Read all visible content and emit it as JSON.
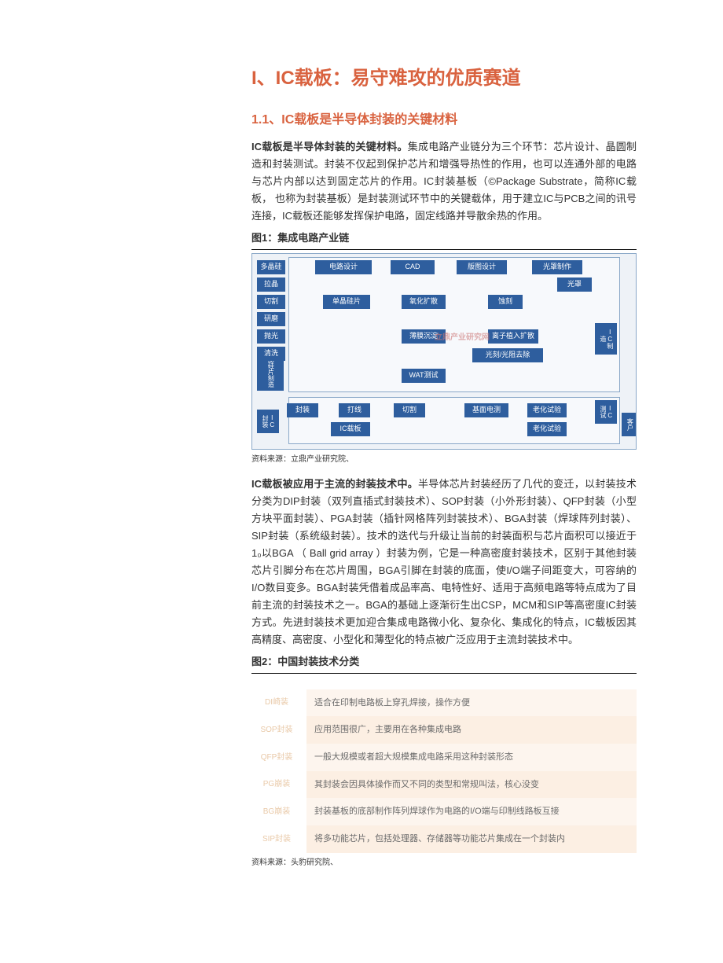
{
  "title_h1": "I、IC载板：易守难攻的优质赛道",
  "title_h2": "1.1、IC载板是半导体封装的关键材料",
  "para1_bold": "IC载板是半导体封装的关键材料。",
  "para1_rest": "集成电路产业链分为三个环节：芯片设计、晶圆制造和封装测试。封装不仅起到保护芯片和增强导热性的作用，也可以连通外部的电路与芯片内部以达到固定芯片的作用。IC封装基板（©Package Substrate，简称IC载板， 也称为封装基板）是封装测试环节中的关键载体，用于建立IC与PCB之间的讯号连接，IC载板还能够发挥保护电路，固定线路并导散余热的作用。",
  "fig1_title": "图1：集成电路产业链",
  "fig1_source": "资料来源：立鼎产业研究院、",
  "fig1": {
    "bg": "#eef2f7",
    "group_bg": "#f7f9fc",
    "border": "#8aa8c8",
    "node_bg": "#2e5e9e",
    "side_labels": {
      "top": "单晶硅片制造",
      "middle": "IC制造",
      "test": "IC测试",
      "pack": "IC封装",
      "cust": "客户"
    },
    "row_design": [
      "多晶硅",
      "电路设计",
      "CAD",
      "版图设计",
      "光罩制作"
    ],
    "row_prep": [
      "拉晶",
      "切割",
      "研磨",
      "抛光",
      "清洗"
    ],
    "row_front": [
      "单晶硅片",
      "氧化扩散",
      "薄膜沉淀",
      "蚀刻",
      "离子植入扩散",
      "光罩",
      "光刻/光阻去除"
    ],
    "row_back": [
      "WAT测试",
      "IC载板",
      "切割",
      "基面电测",
      "打线",
      "封装",
      "老化试验",
      "老化试验"
    ],
    "watermark": "立鼎产业研究网"
  },
  "para2_bold": "IC载板被应用于主流的封装技术中。",
  "para2_rest": "半导体芯片封装经历了几代的变迁，以封装技术分类为DIP封装（双列直插式封装技术）、SOP封装（小外形封装）、QFP封装（小型方块平面封装）、PGA封装（插针网格阵列封装技术）、BGA封装（焊球阵列封装）、SIP封装（系统级封装）。技术的迭代与升级让当前的封装面积与芯片面积可以接近于1₀以BGA （ Ball grid array ）封装为例，它是一种高密度封装技术，区别于其他封装芯片引脚分布在芯片周围，BGA引脚在封装的底面，使I/O端子间距变大，可容纳的I/O数目变多。BGA封装凭借着成品率高、电特性好、适用于高频电路等特点成为了目前主流的封装技术之一。BGA的基础上逐渐衍生出CSP，MCM和SIP等高密度IC封装方式。先进封装技术更加迎合集成电路微小化、复杂化、集成化的特点，IC载板因其高精度、高密度、小型化和薄型化的特点被广泛应用于主流封装技术中。",
  "fig2_title": "图2：中国封装技术分类",
  "fig2_source": "资料来源：头豹研究院、",
  "fig2": {
    "label_color": "#e9c9a8",
    "desc_color": "#6b6b6b",
    "stripe_a": "#fdf5ee",
    "stripe_b": "#fcefe3",
    "rows": [
      {
        "label": "DI崎装",
        "desc": "适合在印制电路板上穿孔焊接，操作方便"
      },
      {
        "label": "SOP封装",
        "desc": "应用范围很广，主要用在各种集成电路"
      },
      {
        "label": "QFP封装",
        "desc": "一般大规模或者超大规模集成电路采用这种封装形态"
      },
      {
        "label": "PG崩装",
        "desc": "其封装会因具体操作而又不同的类型和常规叫法，核心没变"
      },
      {
        "label": "BG崩装",
        "desc": "封装基板的底部制作阵列焊球作为电路的I/O端与印制线路板互接"
      },
      {
        "label": "SIP封装",
        "desc": "将多功能芯片，包括处理器、存储器等功能芯片集成在一个封装内"
      }
    ]
  }
}
